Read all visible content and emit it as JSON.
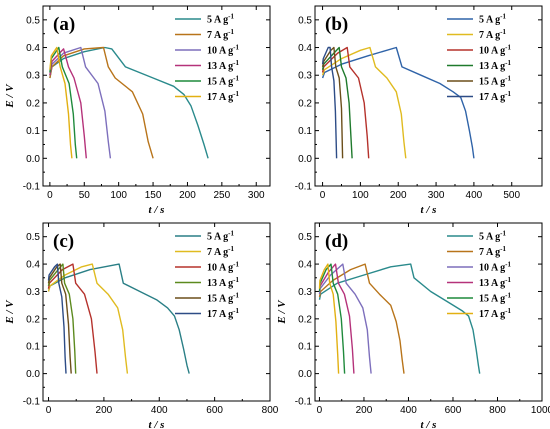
{
  "chart_data": [
    {
      "type": "line",
      "panel_label": "(a)",
      "xlabel": "t / s",
      "ylabel": "E / V",
      "xlim": [
        -10,
        320
      ],
      "ylim": [
        -0.1,
        0.55
      ],
      "xticks": [
        0,
        50,
        100,
        150,
        200,
        250,
        300
      ],
      "yticks": [
        -0.1,
        0.0,
        0.1,
        0.2,
        0.3,
        0.4,
        0.5
      ],
      "legend_position": "top-right",
      "series": [
        {
          "name": "5 A g-1",
          "color": "#2a8a8c",
          "x": [
            0,
            3,
            20,
            50,
            80,
            90,
            110,
            150,
            180,
            195,
            205,
            215,
            224,
            230
          ],
          "y": [
            0.29,
            0.33,
            0.36,
            0.385,
            0.4,
            0.395,
            0.33,
            0.29,
            0.26,
            0.23,
            0.19,
            0.12,
            0.05,
            0.0
          ]
        },
        {
          "name": "7 A g-1",
          "color": "#b8741a",
          "x": [
            0,
            3,
            20,
            50,
            78,
            85,
            95,
            120,
            135,
            143,
            150
          ],
          "y": [
            0.29,
            0.33,
            0.37,
            0.395,
            0.4,
            0.33,
            0.29,
            0.24,
            0.16,
            0.06,
            0.0
          ]
        },
        {
          "name": "10 A g-1",
          "color": "#7d6fbc",
          "x": [
            0,
            3,
            20,
            45,
            52,
            70,
            80,
            85,
            88
          ],
          "y": [
            0.3,
            0.34,
            0.38,
            0.4,
            0.33,
            0.27,
            0.17,
            0.06,
            0.0
          ]
        },
        {
          "name": "13 A g-1",
          "color": "#b5327a",
          "x": [
            0,
            3,
            20,
            27,
            35,
            45,
            50,
            53
          ],
          "y": [
            0.3,
            0.35,
            0.395,
            0.33,
            0.29,
            0.2,
            0.08,
            0.0
          ]
        },
        {
          "name": "15 A g-1",
          "color": "#1f8a3c",
          "x": [
            0,
            2,
            13,
            18,
            28,
            34,
            37,
            39
          ],
          "y": [
            0.31,
            0.36,
            0.4,
            0.33,
            0.27,
            0.16,
            0.05,
            0.0
          ]
        },
        {
          "name": "17 A g-1",
          "color": "#e2b012",
          "x": [
            0,
            2,
            10,
            15,
            22,
            27,
            30,
            32
          ],
          "y": [
            0.32,
            0.37,
            0.4,
            0.33,
            0.27,
            0.16,
            0.05,
            0.0
          ]
        }
      ]
    },
    {
      "type": "line",
      "panel_label": "(b)",
      "xlabel": "t / s",
      "ylabel": "",
      "xlim": [
        -20,
        580
      ],
      "ylim": [
        -0.1,
        0.55
      ],
      "xticks": [
        0,
        100,
        200,
        300,
        400,
        500
      ],
      "yticks": [
        -0.1,
        0.0,
        0.1,
        0.2,
        0.3,
        0.4,
        0.5
      ],
      "legend_position": "top-right",
      "series": [
        {
          "name": "5 A g-1",
          "color": "#2f63a8",
          "x": [
            0,
            5,
            50,
            120,
            195,
            210,
            260,
            310,
            345,
            365,
            378,
            388,
            396,
            400
          ],
          "y": [
            0.29,
            0.31,
            0.34,
            0.37,
            0.4,
            0.33,
            0.3,
            0.27,
            0.24,
            0.22,
            0.17,
            0.1,
            0.04,
            0.0
          ]
        },
        {
          "name": "7 A g-1",
          "color": "#e0bb20",
          "x": [
            0,
            5,
            50,
            100,
            125,
            140,
            170,
            195,
            208,
            215,
            220
          ],
          "y": [
            0.3,
            0.32,
            0.36,
            0.39,
            0.4,
            0.33,
            0.29,
            0.24,
            0.16,
            0.06,
            0.0
          ]
        },
        {
          "name": "10 A g-1",
          "color": "#b5322c",
          "x": [
            0,
            3,
            40,
            65,
            72,
            95,
            110,
            118,
            122
          ],
          "y": [
            0.31,
            0.33,
            0.38,
            0.4,
            0.33,
            0.29,
            0.2,
            0.08,
            0.0
          ]
        },
        {
          "name": "13 A g-1",
          "color": "#1f7a2c",
          "x": [
            0,
            3,
            30,
            44,
            50,
            62,
            70,
            75,
            78
          ],
          "y": [
            0.32,
            0.34,
            0.38,
            0.4,
            0.33,
            0.29,
            0.2,
            0.08,
            0.0
          ]
        },
        {
          "name": "15 A g-1",
          "color": "#6b4e1a",
          "x": [
            0,
            3,
            22,
            30,
            35,
            44,
            50,
            53
          ],
          "y": [
            0.33,
            0.35,
            0.39,
            0.4,
            0.33,
            0.29,
            0.18,
            0.0
          ]
        },
        {
          "name": "17 A g-1",
          "color": "#2d4c86",
          "x": [
            0,
            2,
            15,
            20,
            24,
            30,
            34,
            37
          ],
          "y": [
            0.34,
            0.36,
            0.4,
            0.4,
            0.33,
            0.28,
            0.17,
            0.0
          ]
        }
      ]
    },
    {
      "type": "line",
      "panel_label": "(c)",
      "xlabel": "t / s",
      "ylabel": "E / V",
      "xlim": [
        -20,
        800
      ],
      "ylim": [
        -0.1,
        0.55
      ],
      "xticks": [
        0,
        200,
        400,
        600,
        800
      ],
      "yticks": [
        -0.1,
        0.0,
        0.1,
        0.2,
        0.3,
        0.4,
        0.5
      ],
      "legend_position": "top-right",
      "series": [
        {
          "name": "5 A g-1",
          "color": "#2a7f86",
          "x": [
            0,
            5,
            60,
            150,
            255,
            270,
            330,
            390,
            430,
            455,
            472,
            488,
            500,
            508
          ],
          "y": [
            0.3,
            0.32,
            0.35,
            0.38,
            0.4,
            0.33,
            0.3,
            0.27,
            0.24,
            0.21,
            0.16,
            0.09,
            0.03,
            0.0
          ]
        },
        {
          "name": "7 A g-1",
          "color": "#e0bb20",
          "x": [
            0,
            5,
            60,
            120,
            158,
            175,
            215,
            250,
            268,
            278,
            285
          ],
          "y": [
            0.3,
            0.32,
            0.36,
            0.39,
            0.4,
            0.33,
            0.29,
            0.24,
            0.16,
            0.06,
            0.0
          ]
        },
        {
          "name": "10 A g-1",
          "color": "#b5322c",
          "x": [
            0,
            3,
            50,
            88,
            98,
            130,
            155,
            168,
            175
          ],
          "y": [
            0.31,
            0.33,
            0.38,
            0.4,
            0.33,
            0.29,
            0.2,
            0.08,
            0.0
          ]
        },
        {
          "name": "13 A g-1",
          "color": "#5c8a1e",
          "x": [
            0,
            3,
            35,
            52,
            58,
            75,
            88,
            95,
            98
          ],
          "y": [
            0.32,
            0.34,
            0.38,
            0.4,
            0.33,
            0.29,
            0.2,
            0.08,
            0.0
          ]
        },
        {
          "name": "15 A g-1",
          "color": "#6b4e1a",
          "x": [
            0,
            3,
            30,
            42,
            48,
            62,
            72,
            78,
            82
          ],
          "y": [
            0.33,
            0.35,
            0.39,
            0.4,
            0.33,
            0.29,
            0.18,
            0.06,
            0.0
          ]
        },
        {
          "name": "17 A g-1",
          "color": "#2d4c86",
          "x": [
            0,
            2,
            22,
            32,
            37,
            48,
            56,
            60,
            63
          ],
          "y": [
            0.34,
            0.36,
            0.39,
            0.4,
            0.33,
            0.28,
            0.17,
            0.06,
            0.0
          ]
        }
      ]
    },
    {
      "type": "line",
      "panel_label": "(d)",
      "xlabel": "t / s",
      "ylabel": "E / V",
      "xlim": [
        -20,
        1000
      ],
      "ylim": [
        -0.1,
        0.55
      ],
      "xticks": [
        0,
        200,
        400,
        600,
        800,
        1000
      ],
      "yticks": [
        -0.1,
        0.0,
        0.1,
        0.2,
        0.3,
        0.4,
        0.5
      ],
      "legend_position": "top-right",
      "series": [
        {
          "name": "5 A g-1",
          "color": "#2a8a8c",
          "x": [
            0,
            5,
            80,
            200,
            320,
            410,
            425,
            500,
            580,
            640,
            670,
            690,
            704,
            714,
            720
          ],
          "y": [
            0.27,
            0.29,
            0.33,
            0.36,
            0.39,
            0.4,
            0.35,
            0.3,
            0.26,
            0.23,
            0.21,
            0.16,
            0.09,
            0.03,
            0.0
          ]
        },
        {
          "name": "7 A g-1",
          "color": "#b8741a",
          "x": [
            0,
            5,
            60,
            140,
            205,
            225,
            270,
            320,
            345,
            362,
            372,
            380
          ],
          "y": [
            0.28,
            0.3,
            0.34,
            0.38,
            0.4,
            0.33,
            0.29,
            0.25,
            0.19,
            0.12,
            0.05,
            0.0
          ]
        },
        {
          "name": "10 A g-1",
          "color": "#7d6fbc",
          "x": [
            0,
            3,
            50,
            105,
            120,
            160,
            195,
            215,
            225,
            232
          ],
          "y": [
            0.29,
            0.31,
            0.36,
            0.4,
            0.33,
            0.29,
            0.24,
            0.16,
            0.06,
            0.0
          ]
        },
        {
          "name": "13 A g-1",
          "color": "#b5327a",
          "x": [
            0,
            3,
            40,
            72,
            85,
            112,
            135,
            148,
            155
          ],
          "y": [
            0.3,
            0.32,
            0.37,
            0.4,
            0.33,
            0.29,
            0.21,
            0.09,
            0.0
          ]
        },
        {
          "name": "15 A g-1",
          "color": "#1f8a3c",
          "x": [
            0,
            3,
            30,
            52,
            62,
            82,
            98,
            108,
            113
          ],
          "y": [
            0.3,
            0.33,
            0.38,
            0.4,
            0.33,
            0.29,
            0.2,
            0.08,
            0.0
          ]
        },
        {
          "name": "17 A g-1",
          "color": "#e2b012",
          "x": [
            0,
            2,
            22,
            38,
            46,
            62,
            74,
            82,
            86
          ],
          "y": [
            0.31,
            0.34,
            0.38,
            0.4,
            0.33,
            0.29,
            0.19,
            0.07,
            0.0
          ]
        }
      ]
    }
  ]
}
